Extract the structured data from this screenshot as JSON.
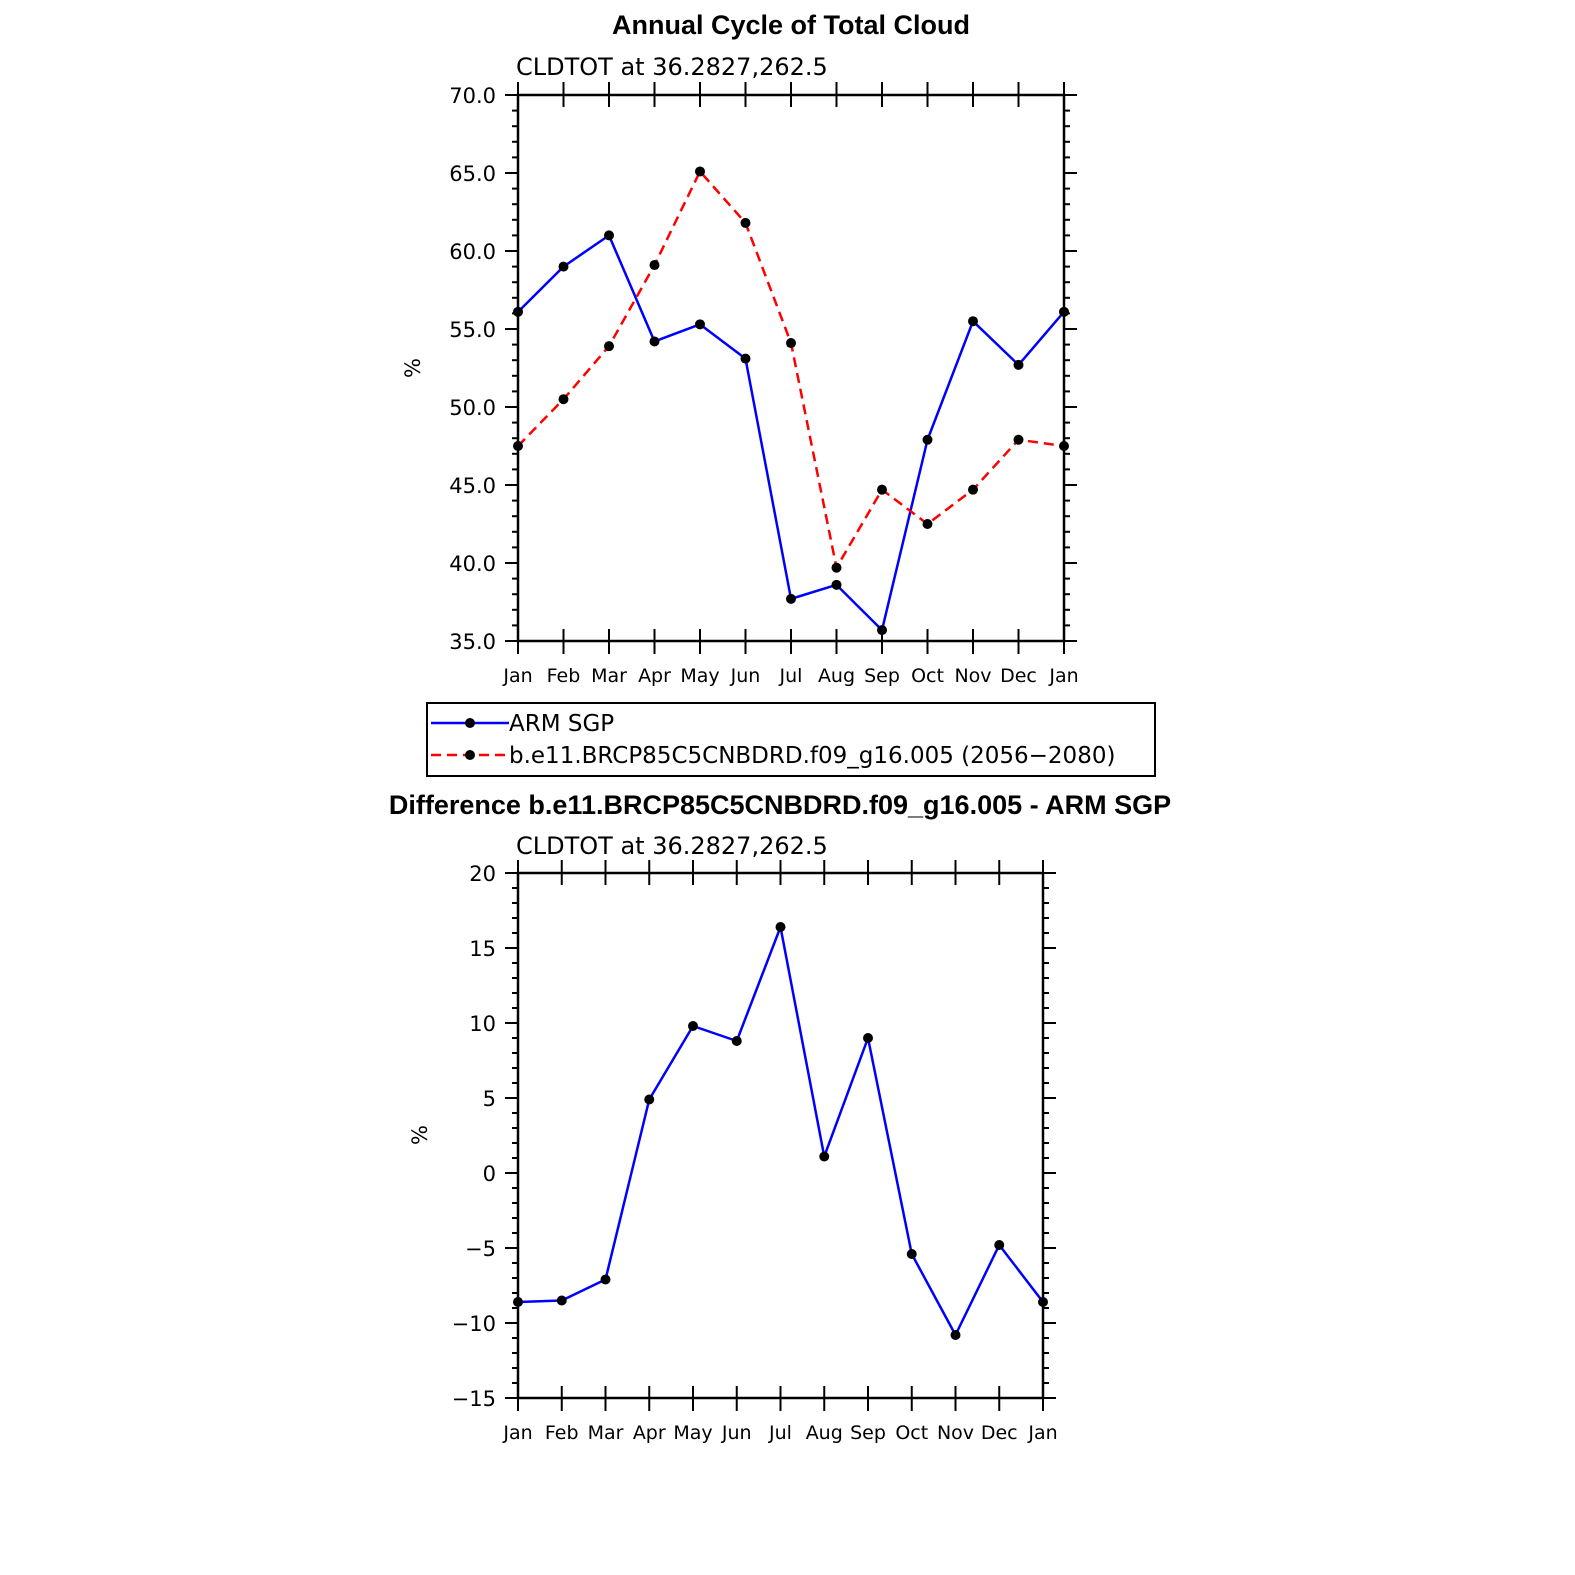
{
  "chart_data": [
    {
      "type": "line",
      "title": "Annual Cycle of Total Cloud",
      "subtitle": "CLDTOT at 36.2827,262.5",
      "ylabel": "%",
      "xlabel": "",
      "ylim": [
        35,
        70
      ],
      "yticks": [
        "35.0",
        "40.0",
        "45.0",
        "50.0",
        "55.0",
        "60.0",
        "65.0",
        "70.0"
      ],
      "categories": [
        "Jan",
        "Feb",
        "Mar",
        "Apr",
        "May",
        "Jun",
        "Jul",
        "Aug",
        "Sep",
        "Oct",
        "Nov",
        "Dec",
        "Jan"
      ],
      "grid": false,
      "legend": "below",
      "series": [
        {
          "name": "ARM SGP",
          "color": "#0000ff",
          "style": "solid",
          "values": [
            56.1,
            59.0,
            61.0,
            54.2,
            55.3,
            53.1,
            37.7,
            38.6,
            35.7,
            47.9,
            55.5,
            52.7,
            56.1
          ]
        },
        {
          "name": "b.e11.BRCP85C5CNBDRD.f09_g16.005 (2056−2080)",
          "color": "#ff0000",
          "style": "dashed",
          "values": [
            47.5,
            50.5,
            53.9,
            59.1,
            65.1,
            61.8,
            54.1,
            39.7,
            44.7,
            42.5,
            44.7,
            47.9,
            47.5
          ]
        }
      ]
    },
    {
      "type": "line",
      "title": "Difference b.e11.BRCP85C5CNBDRD.f09_g16.005 - ARM SGP",
      "subtitle": "CLDTOT at 36.2827,262.5",
      "ylabel": "%",
      "xlabel": "",
      "ylim": [
        -15,
        20
      ],
      "yticks": [
        "−15",
        "−10",
        "−5",
        "0",
        "5",
        "10",
        "15",
        "20"
      ],
      "categories": [
        "Jan",
        "Feb",
        "Mar",
        "Apr",
        "May",
        "Jun",
        "Jul",
        "Aug",
        "Sep",
        "Oct",
        "Nov",
        "Dec",
        "Jan"
      ],
      "grid": false,
      "series": [
        {
          "color": "#0000ff",
          "style": "solid",
          "values": [
            -8.6,
            -8.5,
            -7.1,
            4.9,
            9.8,
            8.8,
            16.4,
            1.1,
            9.0,
            -5.4,
            -10.8,
            -4.8,
            -8.6
          ]
        }
      ]
    }
  ]
}
